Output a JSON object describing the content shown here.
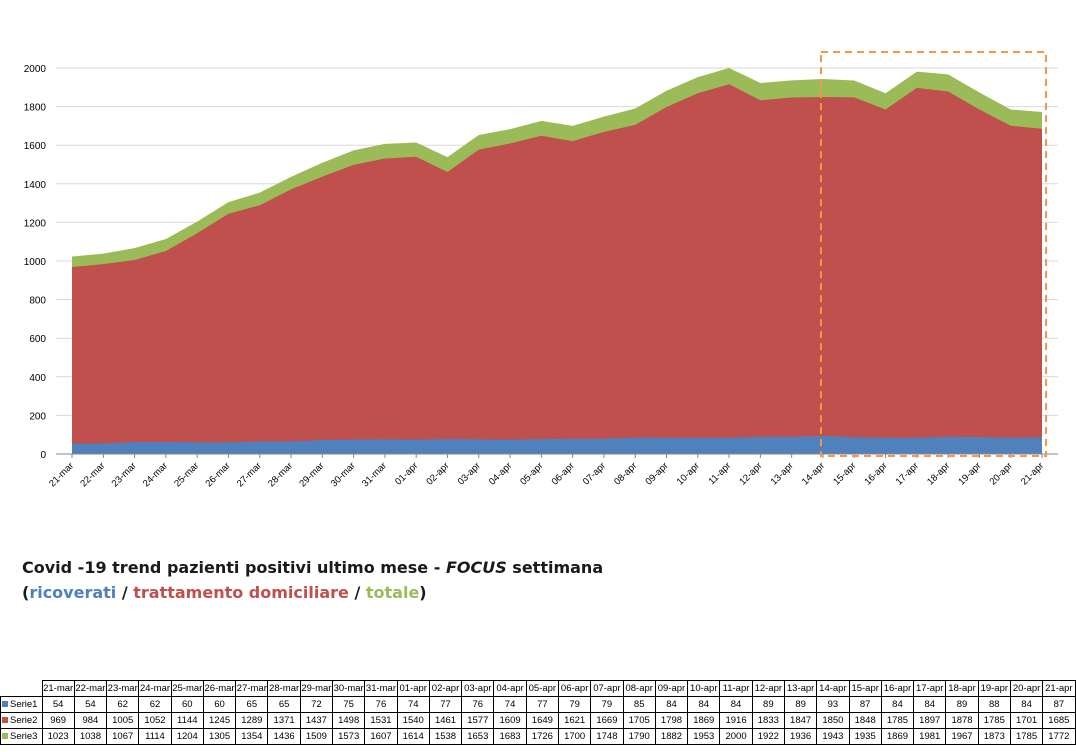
{
  "caption": {
    "line1_prefix": "Covid -19 trend pazienti positivi ultimo mese - ",
    "line1_focus": "FOCUS",
    "line1_suffix": " settimana",
    "paren_open": "(",
    "ricoverati": "ricoverati",
    "sep1": " / ",
    "trattamento": "trattamento domiciliare",
    "sep2": " / ",
    "totale": "totale",
    "paren_close": ")"
  },
  "chart_data": {
    "type": "area",
    "categories": [
      "21-mar",
      "22-mar",
      "23-mar",
      "24-mar",
      "25-mar",
      "26-mar",
      "27-mar",
      "28-mar",
      "29-mar",
      "30-mar",
      "31-mar",
      "01-apr",
      "02-apr",
      "03-apr",
      "04-apr",
      "05-apr",
      "06-apr",
      "07-apr",
      "08-apr",
      "09-apr",
      "10-apr",
      "11-apr",
      "12-apr",
      "13-apr",
      "14-apr",
      "15-apr",
      "16-apr",
      "17-apr",
      "18-apr",
      "19-apr",
      "20-apr",
      "21-apr"
    ],
    "series": [
      {
        "name": "Serie1",
        "color": "#4f81bd",
        "values": [
          54,
          54,
          62,
          62,
          60,
          60,
          65,
          65,
          72,
          75,
          76,
          74,
          77,
          76,
          74,
          77,
          79,
          79,
          85,
          84,
          84,
          84,
          89,
          89,
          93,
          87,
          84,
          84,
          89,
          88,
          84,
          87
        ]
      },
      {
        "name": "Serie2",
        "color": "#c0504d",
        "values": [
          969,
          984,
          1005,
          1052,
          1144,
          1245,
          1289,
          1371,
          1437,
          1498,
          1531,
          1540,
          1461,
          1577,
          1609,
          1649,
          1621,
          1669,
          1705,
          1798,
          1869,
          1916,
          1833,
          1847,
          1850,
          1848,
          1785,
          1897,
          1878,
          1785,
          1701,
          1685
        ]
      },
      {
        "name": "Serie3",
        "color": "#9bbb59",
        "values": [
          1023,
          1038,
          1067,
          1114,
          1204,
          1305,
          1354,
          1436,
          1509,
          1573,
          1607,
          1614,
          1538,
          1653,
          1683,
          1726,
          1700,
          1748,
          1790,
          1882,
          1953,
          2000,
          1922,
          1936,
          1943,
          1935,
          1869,
          1981,
          1967,
          1873,
          1785,
          1772
        ]
      }
    ],
    "ylim": [
      0,
      2000
    ],
    "yticks": [
      0,
      200,
      400,
      600,
      800,
      1000,
      1200,
      1400,
      1600,
      1800,
      2000
    ],
    "grid": true,
    "highlight": {
      "from": "14-apr",
      "to": "21-apr",
      "color": "#f79646",
      "style": "dashed"
    }
  }
}
